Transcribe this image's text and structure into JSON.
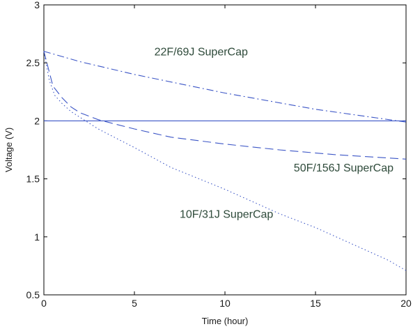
{
  "chart_data": {
    "type": "line",
    "title": "",
    "xlabel": "Time (hour)",
    "ylabel": "Voltage (V)",
    "xlim": [
      0,
      20
    ],
    "ylim": [
      0.5,
      3
    ],
    "xticks": [
      0,
      5,
      10,
      15,
      20
    ],
    "yticks": [
      0.5,
      1,
      1.5,
      2,
      2.5,
      3
    ],
    "xtick_labels": [
      "0",
      "5",
      "10",
      "15",
      "20"
    ],
    "ytick_labels": [
      "0.5",
      "1",
      "1.5",
      "2",
      "2.5",
      "3"
    ],
    "grid": false,
    "box": true,
    "series": [
      {
        "style": "dash-dot",
        "color": "#3b55c6",
        "x": [
          0,
          2,
          5,
          10,
          15,
          20
        ],
        "y": [
          2.6,
          2.51,
          2.4,
          2.24,
          2.1,
          1.99
        ]
      },
      {
        "style": "dashed",
        "color": "#3b55c6",
        "x": [
          0,
          0.5,
          1,
          1.5,
          2,
          3,
          4,
          5,
          7,
          10,
          13,
          16,
          20
        ],
        "y": [
          2.6,
          2.3,
          2.2,
          2.12,
          2.07,
          2.01,
          1.97,
          1.93,
          1.86,
          1.8,
          1.75,
          1.71,
          1.67
        ]
      },
      {
        "style": "dotted",
        "color": "#3b55c6",
        "x": [
          0,
          0.3,
          0.6,
          1,
          1.5,
          2,
          3,
          4,
          5,
          7,
          10,
          13,
          15,
          17,
          19,
          20
        ],
        "y": [
          2.6,
          2.35,
          2.22,
          2.15,
          2.08,
          2.03,
          1.93,
          1.85,
          1.77,
          1.6,
          1.41,
          1.2,
          1.08,
          0.94,
          0.8,
          0.71
        ]
      },
      {
        "style": "solid",
        "color": "#3b55c6",
        "x": [
          0,
          20
        ],
        "y": [
          2,
          2
        ]
      }
    ],
    "annotations": [
      {
        "text": "22F/69J SuperCap",
        "x": 6.1,
        "y": 2.6
      },
      {
        "text": "50F/156J SuperCap",
        "x": 13.8,
        "y": 1.6
      },
      {
        "text": "10F/31J SuperCap",
        "x": 7.5,
        "y": 1.2
      }
    ]
  }
}
